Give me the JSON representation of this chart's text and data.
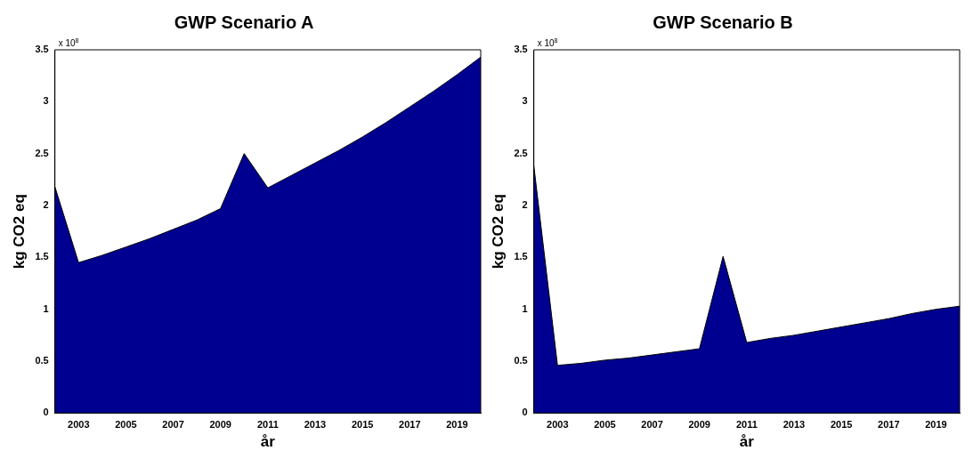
{
  "chart_data": [
    {
      "type": "area",
      "title": "GWP Scenario A",
      "xlabel": "år",
      "ylabel": "kg CO2 eq",
      "annotations": [
        "x 10$^{8}$"
      ],
      "color": "#000090",
      "grid": false,
      "legend": false,
      "xlim": [
        2002,
        2020
      ],
      "xticks": [
        2003,
        2005,
        2007,
        2009,
        2011,
        2013,
        2015,
        2017,
        2019
      ],
      "ylim": [
        0,
        3.5
      ],
      "yticks": [
        0,
        0.5,
        1,
        1.5,
        2,
        2.5,
        3,
        3.5
      ],
      "x": [
        2002,
        2003,
        2004,
        2005,
        2006,
        2007,
        2008,
        2009,
        2010,
        2011,
        2012,
        2013,
        2014,
        2015,
        2016,
        2017,
        2018,
        2019,
        2020
      ],
      "values": [
        2.18,
        1.45,
        1.52,
        1.6,
        1.68,
        1.77,
        1.86,
        1.97,
        2.5,
        2.17,
        2.29,
        2.41,
        2.53,
        2.66,
        2.8,
        2.95,
        3.1,
        3.26,
        3.43
      ]
    },
    {
      "type": "area",
      "title": "GWP Scenario B",
      "xlabel": "år",
      "ylabel": "kg CO2 eq",
      "annotations": [
        "x 10$^{8}$"
      ],
      "color": "#000090",
      "grid": false,
      "legend": false,
      "xlim": [
        2002,
        2020
      ],
      "xticks": [
        2003,
        2005,
        2007,
        2009,
        2011,
        2013,
        2015,
        2017,
        2019
      ],
      "ylim": [
        0,
        3.5
      ],
      "yticks": [
        0,
        0.5,
        1,
        1.5,
        2,
        2.5,
        3,
        3.5
      ],
      "x": [
        2002,
        2003,
        2004,
        2005,
        2006,
        2007,
        2008,
        2009,
        2010,
        2011,
        2012,
        2013,
        2014,
        2015,
        2016,
        2017,
        2018,
        2019,
        2020
      ],
      "values": [
        2.38,
        0.46,
        0.48,
        0.51,
        0.53,
        0.56,
        0.59,
        0.62,
        1.51,
        0.68,
        0.72,
        0.75,
        0.79,
        0.83,
        0.87,
        0.91,
        0.96,
        1.0,
        1.03
      ]
    }
  ]
}
